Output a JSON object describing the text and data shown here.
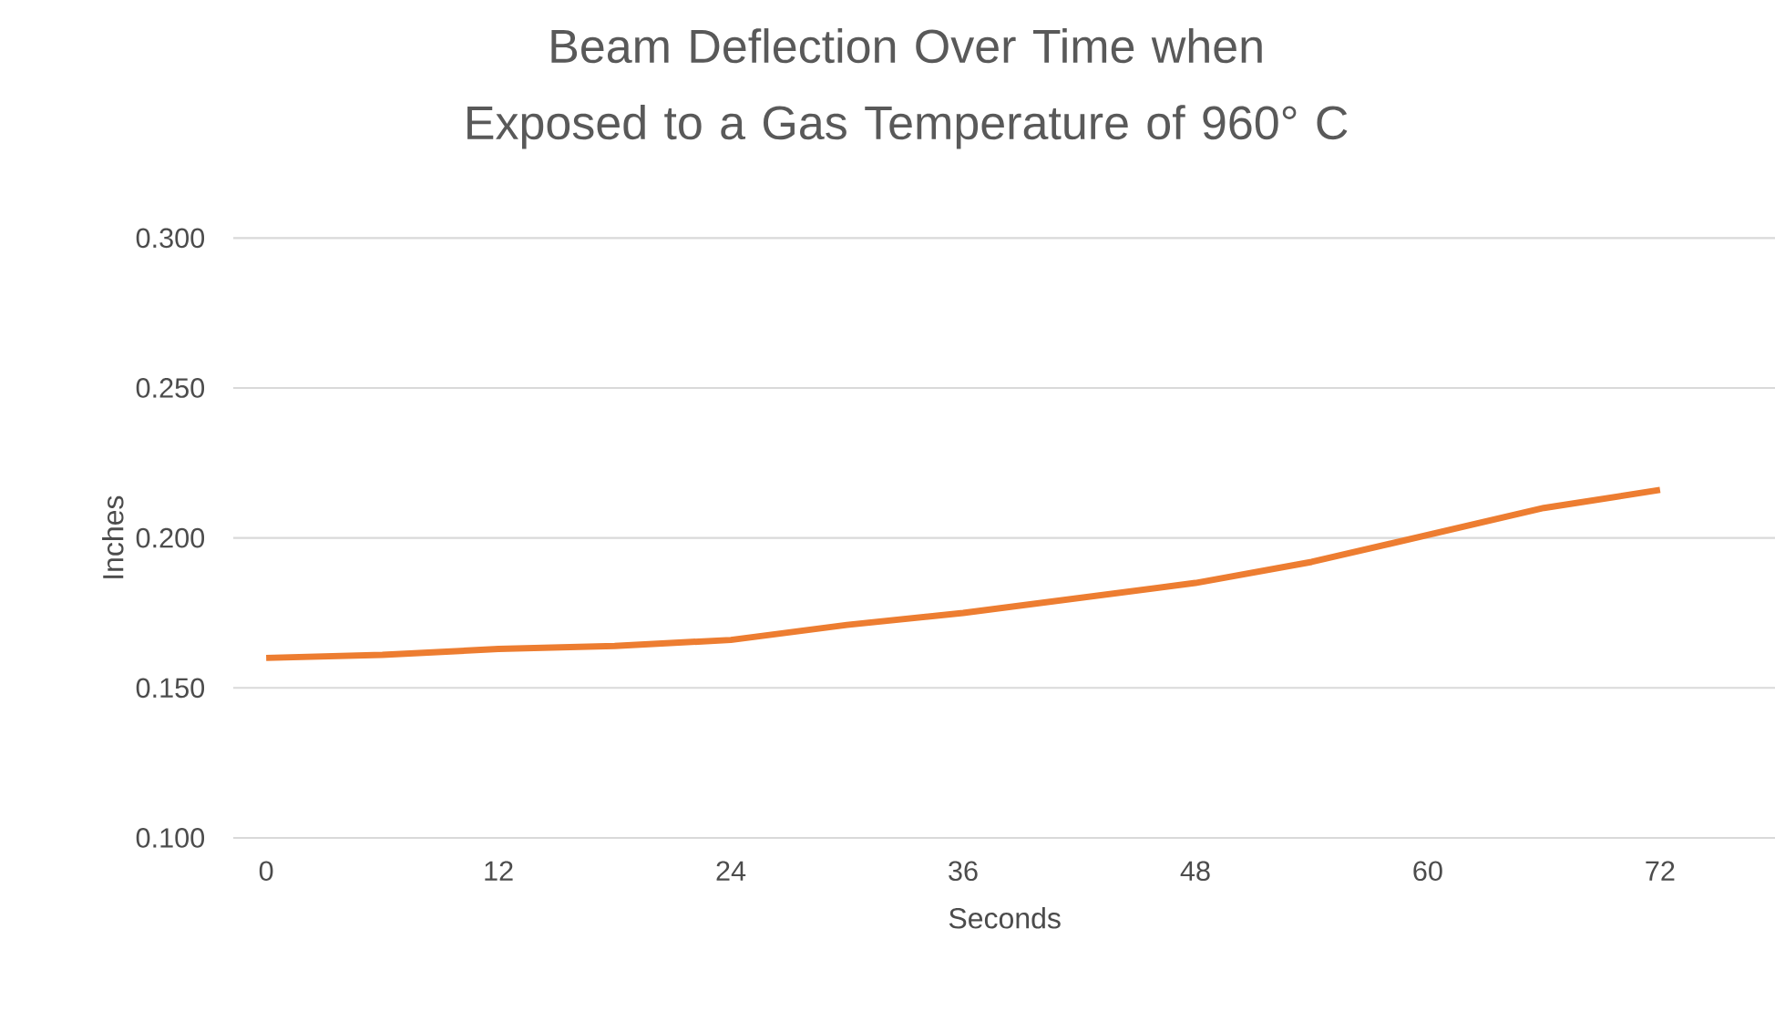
{
  "chart_data": {
    "type": "line",
    "title": "Beam Deflection Over Time when Exposed to a Gas Temperature of 960° C",
    "xlabel": "Seconds",
    "ylabel": "Inches",
    "x": [
      0,
      6,
      12,
      18,
      24,
      30,
      36,
      42,
      48,
      54,
      60,
      66,
      72
    ],
    "series": [
      {
        "color": "#ed7d31",
        "values": [
          0.16,
          0.161,
          0.163,
          0.164,
          0.166,
          0.171,
          0.175,
          0.18,
          0.185,
          0.192,
          0.201,
          0.21,
          0.216
        ]
      }
    ],
    "xlim": [
      -1.7,
      78
    ],
    "xticks": [
      0,
      12,
      24,
      36,
      48,
      60,
      72
    ],
    "ylim": [
      0.1,
      0.3
    ],
    "yticks": [
      {
        "value": 0.1,
        "label": "0.100"
      },
      {
        "value": 0.15,
        "label": "0.150"
      },
      {
        "value": 0.2,
        "label": "0.200"
      },
      {
        "value": 0.25,
        "label": "0.250"
      },
      {
        "value": 0.3,
        "label": "0.300"
      }
    ],
    "grid": "y",
    "marker": "none",
    "line_style": "solid"
  }
}
